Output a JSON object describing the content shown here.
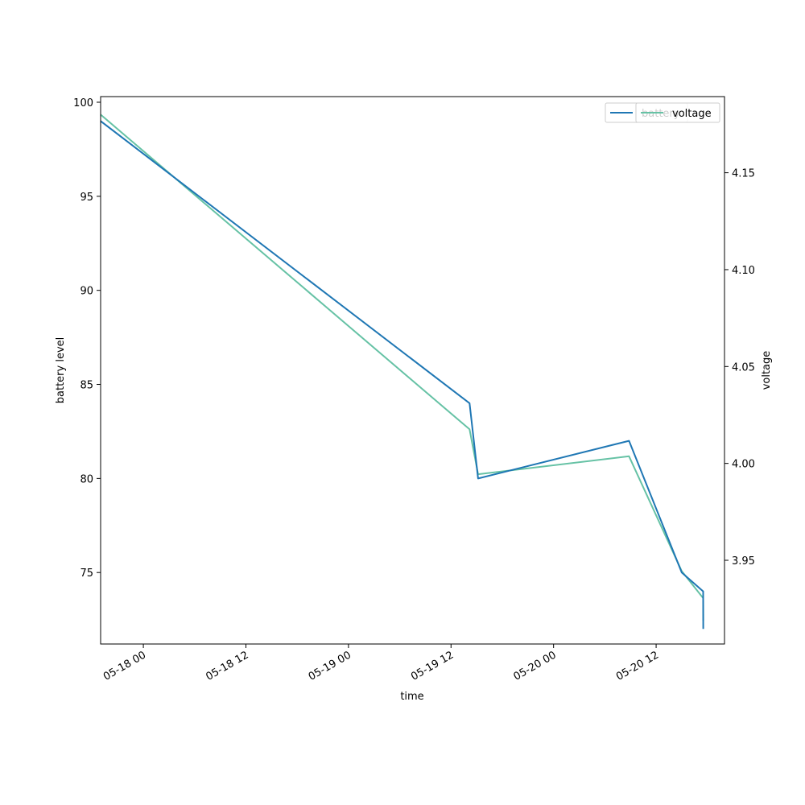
{
  "chart_data": {
    "type": "line",
    "xlabel": "time",
    "ylabel_left": "battery level",
    "ylabel_right": "voltage",
    "x_ticks": [
      "05-18 00",
      "05-18 12",
      "05-19 00",
      "05-19 12",
      "05-20 00",
      "05-20 12"
    ],
    "x_range": [
      "2024-05-17 19:00",
      "2024-05-20 20:00"
    ],
    "y_left_ticks": [
      "75",
      "80",
      "85",
      "90",
      "95",
      "100"
    ],
    "y_left_range": [
      71.2,
      100.3
    ],
    "y_right_ticks": [
      "3.95",
      "4.00",
      "4.05",
      "4.10",
      "4.15"
    ],
    "y_right_range": [
      3.9068,
      4.1893
    ],
    "series": [
      {
        "name": "battery",
        "axis": "left",
        "color": "#1f77b4",
        "x": [
          "2024-05-17 19:00",
          "2024-05-19 14:10",
          "2024-05-19 15:10",
          "2024-05-20 08:50",
          "2024-05-20 15:00",
          "2024-05-20 17:30",
          "2024-05-20 17:31"
        ],
        "y": [
          99,
          84,
          80,
          82,
          75,
          74,
          72
        ]
      },
      {
        "name": "voltage",
        "axis": "right",
        "color": "#66c2a5",
        "x": [
          "2024-05-17 19:00",
          "2024-05-19 14:10",
          "2024-05-19 15:10",
          "2024-05-20 08:50",
          "2024-05-20 15:00",
          "2024-05-20 17:30",
          "2024-05-20 17:31"
        ],
        "y": [
          4.18,
          4.0176,
          3.9944,
          4.0037,
          3.9444,
          3.9305,
          3.9189
        ]
      }
    ],
    "legend": {
      "placement": "top-right",
      "left_entry": "battery",
      "right_entry": "voltage"
    }
  }
}
